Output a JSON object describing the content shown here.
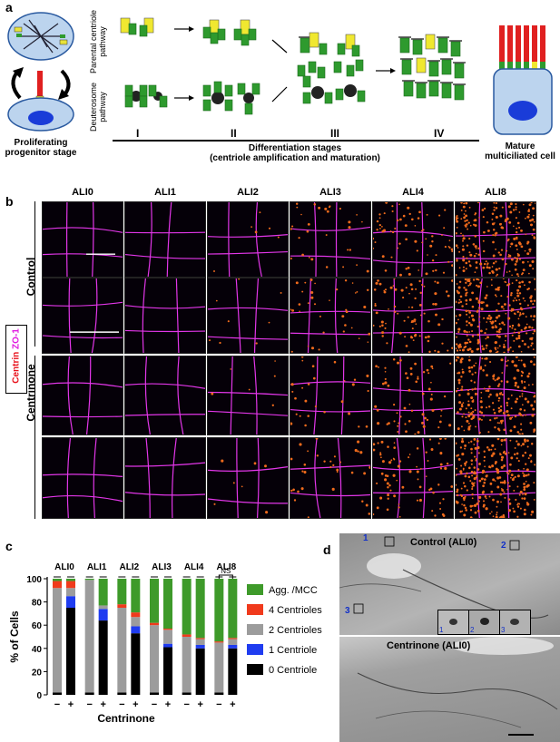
{
  "panel_a": {
    "label": "a",
    "parental_pathway": "Parental centriole pathway",
    "deuterosome_pathway": "Deuterosome pathway",
    "stages": [
      "I",
      "II",
      "III",
      "IV"
    ],
    "stage_title": "Differentiation stages",
    "stage_subtitle": "(centriole amplification and maturation)",
    "left_caption_1": "Proliferating",
    "left_caption_2": "progenitor stage",
    "right_caption_1": "Mature",
    "right_caption_2": "multiciliated cell"
  },
  "panel_b": {
    "label": "b",
    "columns": [
      "ALI0",
      "ALI1",
      "ALI2",
      "ALI3",
      "ALI4",
      "ALI8"
    ],
    "row_groups": [
      "Control",
      "Centrinone"
    ],
    "stain_centrin": "Centrin",
    "stain_zo1": "ZO-1"
  },
  "panel_c": {
    "label": "c",
    "ylabel": "% of Cells",
    "xlabel": "Centrinone",
    "signs": [
      "−",
      "+"
    ],
    "ns": "NS"
  },
  "panel_d": {
    "label": "d",
    "top_title": "Control (ALI0)",
    "bottom_title": "Centrinone (ALI0)",
    "markers": [
      "1",
      "2",
      "3"
    ]
  },
  "chart_data": {
    "type": "bar",
    "stacked": true,
    "categories": [
      "ALI0",
      "ALI1",
      "ALI2",
      "ALI3",
      "ALI4",
      "ALI8"
    ],
    "conditions": [
      "−",
      "+"
    ],
    "ylim": [
      0,
      100
    ],
    "yticks": [
      0,
      20,
      40,
      60,
      80,
      100
    ],
    "series": [
      {
        "name": "0 Centriole",
        "color": "#000000",
        "values": [
          [
            2,
            75
          ],
          [
            2,
            64
          ],
          [
            2,
            53
          ],
          [
            2,
            41
          ],
          [
            2,
            40
          ],
          [
            2,
            40
          ]
        ]
      },
      {
        "name": "1 Centriole",
        "color": "#1f3cf0",
        "values": [
          [
            0,
            10
          ],
          [
            0,
            10
          ],
          [
            0,
            6
          ],
          [
            0,
            3
          ],
          [
            0,
            3
          ],
          [
            0,
            3
          ]
        ]
      },
      {
        "name": "2 Centrioles",
        "color": "#9c9c9c",
        "values": [
          [
            90,
            7
          ],
          [
            97,
            3
          ],
          [
            73,
            8
          ],
          [
            58,
            12
          ],
          [
            48,
            5
          ],
          [
            43,
            5
          ]
        ]
      },
      {
        "name": "4 Centrioles",
        "color": "#f03a1c",
        "values": [
          [
            6,
            6
          ],
          [
            0,
            0
          ],
          [
            3,
            4
          ],
          [
            2,
            1
          ],
          [
            2,
            1
          ],
          [
            1,
            1
          ]
        ]
      },
      {
        "name": "Agg. /MCC",
        "color": "#3e9a2a",
        "values": [
          [
            2,
            2
          ],
          [
            1,
            23
          ],
          [
            22,
            29
          ],
          [
            38,
            43
          ],
          [
            48,
            51
          ],
          [
            54,
            51
          ]
        ]
      }
    ],
    "legend": [
      "Agg. /MCC",
      "4 Centrioles",
      "2 Centrioles",
      "1 Centriole",
      "0 Centriole"
    ]
  }
}
